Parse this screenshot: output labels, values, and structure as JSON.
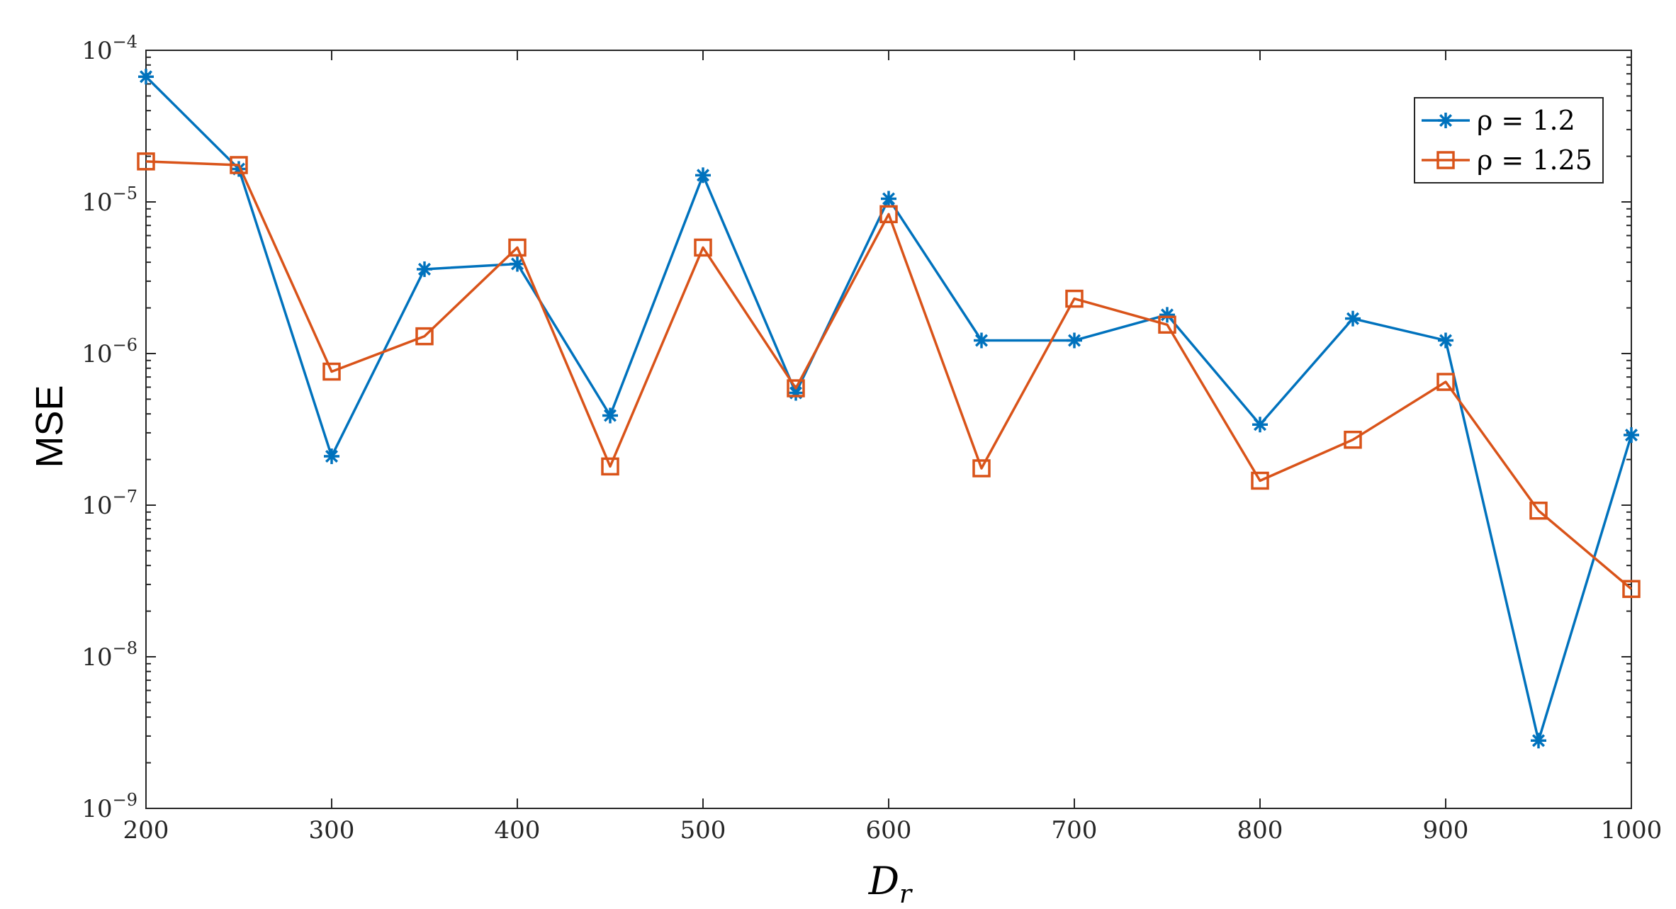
{
  "chart_data": {
    "type": "line",
    "y_scale": "log",
    "xlabel": "D",
    "xlabel_subscript": "r",
    "ylabel": "MSE",
    "xlim": [
      200,
      1000
    ],
    "ylim": [
      1e-09,
      0.0001
    ],
    "x_ticks": [
      200,
      300,
      400,
      500,
      600,
      700,
      800,
      900,
      1000
    ],
    "y_ticks": [
      {
        "value": 1e-09,
        "base": "10",
        "exponent": "−9"
      },
      {
        "value": 1e-08,
        "base": "10",
        "exponent": "−8"
      },
      {
        "value": 1e-07,
        "base": "10",
        "exponent": "−7"
      },
      {
        "value": 1e-06,
        "base": "10",
        "exponent": "−6"
      },
      {
        "value": 1e-05,
        "base": "10",
        "exponent": "−5"
      },
      {
        "value": 0.0001,
        "base": "10",
        "exponent": "−4"
      }
    ],
    "grid": false,
    "legend_position": "top-right",
    "x": [
      200,
      250,
      300,
      350,
      400,
      450,
      500,
      550,
      600,
      650,
      700,
      750,
      800,
      850,
      900,
      950,
      1000
    ],
    "series": [
      {
        "name": "ρ = 1.2",
        "color": "#0072BD",
        "marker": "asterisk",
        "values": [
          6.7e-05,
          1.65e-05,
          2.1e-07,
          3.6e-06,
          3.9e-06,
          3.9e-07,
          1.5e-05,
          5.5e-07,
          1.05e-05,
          1.22e-06,
          1.22e-06,
          1.8e-06,
          3.4e-07,
          1.7e-06,
          1.22e-06,
          2.8e-09,
          2.9e-07
        ]
      },
      {
        "name": "ρ = 1.25",
        "color": "#D95319",
        "marker": "square",
        "values": [
          1.85e-05,
          1.75e-05,
          7.6e-07,
          1.3e-06,
          5e-06,
          1.8e-07,
          5e-06,
          5.9e-07,
          8.3e-06,
          1.75e-07,
          2.3e-06,
          1.55e-06,
          1.45e-07,
          2.7e-07,
          6.5e-07,
          9.2e-08,
          2.8e-08
        ]
      }
    ]
  }
}
